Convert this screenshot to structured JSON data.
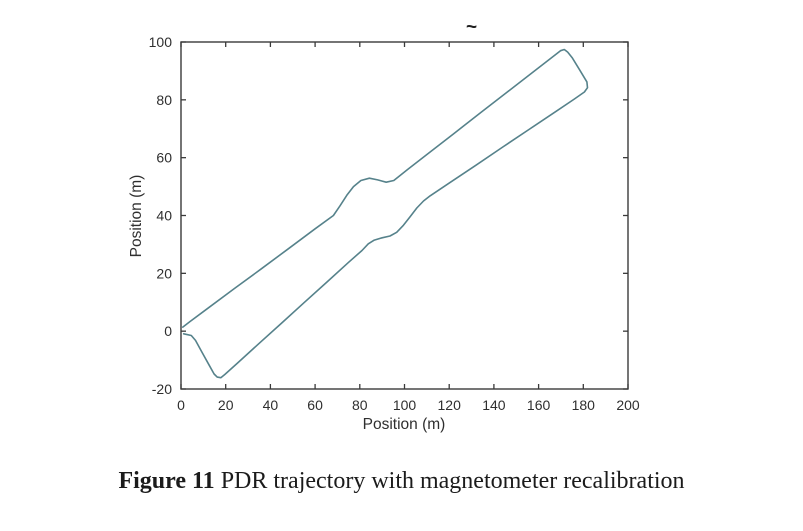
{
  "figure": {
    "caption_label": "Figure 11",
    "caption_text": "PDR trajectory with magnetometer recalibration",
    "stray_mark": "~"
  },
  "chart_data": {
    "type": "line",
    "title": "",
    "xlabel": "Position (m)",
    "ylabel": "Position (m)",
    "xlim": [
      0,
      200
    ],
    "ylim": [
      -20,
      100
    ],
    "x_ticks": [
      0,
      20,
      40,
      60,
      80,
      100,
      120,
      140,
      160,
      180,
      200
    ],
    "y_ticks": [
      -20,
      0,
      20,
      40,
      60,
      80,
      100
    ],
    "grid": false,
    "legend": "none",
    "axis_color": "#3a3a3a",
    "tick_label_color": "#2f2f2f",
    "line_color": "#56828b",
    "series": [
      {
        "points": [
          [
            1.2,
            -0.9
          ],
          [
            4.6,
            -1.5
          ],
          [
            6.5,
            -3.2
          ],
          [
            9.5,
            -7.4
          ],
          [
            12.5,
            -11.6
          ],
          [
            14.8,
            -14.8
          ],
          [
            16.2,
            -15.9
          ],
          [
            17.8,
            -16.1
          ],
          [
            19.6,
            -15.0
          ],
          [
            25,
            -11.2
          ],
          [
            35,
            -4.2
          ],
          [
            45,
            2.8
          ],
          [
            55,
            9.8
          ],
          [
            65,
            16.8
          ],
          [
            75,
            23.8
          ],
          [
            81,
            27.9
          ],
          [
            83.8,
            30.2
          ],
          [
            86.5,
            31.5
          ],
          [
            90,
            32.3
          ],
          [
            93.5,
            32.9
          ],
          [
            96.5,
            34.2
          ],
          [
            99.5,
            36.6
          ],
          [
            102.5,
            39.6
          ],
          [
            105.5,
            42.6
          ],
          [
            108.5,
            45.0
          ],
          [
            111.5,
            46.8
          ],
          [
            120,
            51.2
          ],
          [
            132,
            57.4
          ],
          [
            144,
            63.7
          ],
          [
            156,
            69.9
          ],
          [
            168,
            76.1
          ],
          [
            176,
            80.3
          ],
          [
            180.5,
            82.7
          ],
          [
            181.9,
            84.2
          ],
          [
            181.6,
            86.2
          ],
          [
            178.5,
            90.2
          ],
          [
            175.0,
            94.6
          ],
          [
            173.0,
            96.5
          ],
          [
            171.5,
            97.4
          ],
          [
            169.8,
            97.0
          ],
          [
            168.0,
            95.9
          ],
          [
            158,
            89.9
          ],
          [
            146,
            82.7
          ],
          [
            134,
            75.5
          ],
          [
            122,
            68.3
          ],
          [
            110,
            61.1
          ],
          [
            101.5,
            56.0
          ],
          [
            98.3,
            54.0
          ],
          [
            95.2,
            52.1
          ],
          [
            91.8,
            51.5
          ],
          [
            88.0,
            52.3
          ],
          [
            84.3,
            52.9
          ],
          [
            80.5,
            52.1
          ],
          [
            77.2,
            50.0
          ],
          [
            74.2,
            47.0
          ],
          [
            71.2,
            43.4
          ],
          [
            68.2,
            40.0
          ],
          [
            60,
            35.4
          ],
          [
            48,
            28.5
          ],
          [
            36,
            21.6
          ],
          [
            24,
            14.8
          ],
          [
            12,
            7.9
          ],
          [
            4,
            3.3
          ],
          [
            0.8,
            1.4
          ]
        ]
      }
    ]
  }
}
